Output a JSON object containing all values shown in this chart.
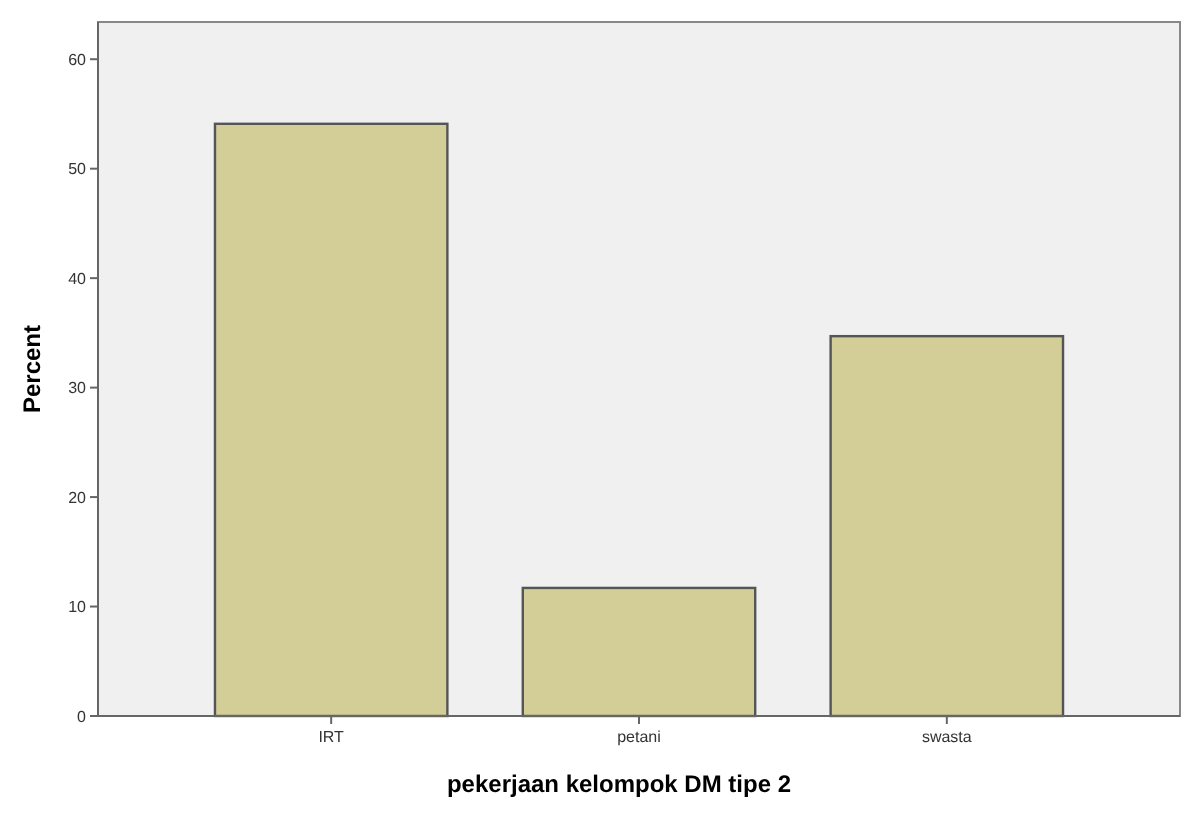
{
  "chart_data": {
    "type": "bar",
    "xlabel": "pekerjaan kelompok DM tipe 2",
    "ylabel": "Percent",
    "categories": [
      "IRT",
      "petani",
      "swasta"
    ],
    "values": [
      54.1,
      11.7,
      34.7
    ],
    "color": "#d3cd97",
    "ylim": [
      0,
      63.4
    ],
    "yticks": [
      0,
      10,
      20,
      30,
      40,
      50,
      60
    ],
    "grid": false
  }
}
